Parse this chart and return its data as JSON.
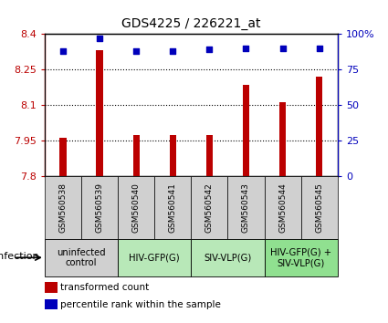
{
  "title": "GDS4225 / 226221_at",
  "samples": [
    "GSM560538",
    "GSM560539",
    "GSM560540",
    "GSM560541",
    "GSM560542",
    "GSM560543",
    "GSM560544",
    "GSM560545"
  ],
  "transformed_counts": [
    7.96,
    8.33,
    7.975,
    7.975,
    7.975,
    8.185,
    8.11,
    8.22
  ],
  "percentile_ranks": [
    88,
    97,
    88,
    88,
    89,
    90,
    90,
    90
  ],
  "y_min": 7.8,
  "y_max": 8.4,
  "y_ticks": [
    7.8,
    7.95,
    8.1,
    8.25,
    8.4
  ],
  "y_tick_labels": [
    "7.8",
    "7.95",
    "8.1",
    "8.25",
    "8.4"
  ],
  "right_y_ticks": [
    0,
    25,
    50,
    75,
    100
  ],
  "right_y_tick_labels": [
    "0",
    "25",
    "50",
    "75",
    "100%"
  ],
  "bar_color": "#bb0000",
  "dot_color": "#0000bb",
  "groups": [
    {
      "label": "uninfected\ncontrol",
      "start": 0,
      "end": 2,
      "color": "#d0d0d0"
    },
    {
      "label": "HIV-GFP(G)",
      "start": 2,
      "end": 4,
      "color": "#b8e8b8"
    },
    {
      "label": "SIV-VLP(G)",
      "start": 4,
      "end": 6,
      "color": "#b8e8b8"
    },
    {
      "label": "HIV-GFP(G) +\nSIV-VLP(G)",
      "start": 6,
      "end": 8,
      "color": "#90e090"
    }
  ],
  "legend_bar_label": "transformed count",
  "legend_dot_label": "percentile rank within the sample",
  "infection_label": "infection",
  "sample_area_color": "#d0d0d0",
  "gridline_color": "#555555"
}
